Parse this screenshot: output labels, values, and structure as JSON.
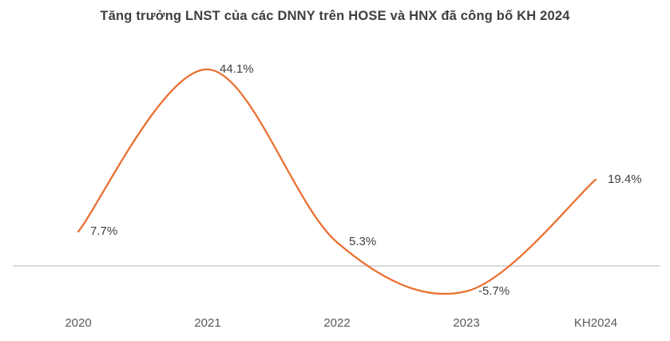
{
  "chart_data": {
    "type": "line",
    "smooth": true,
    "title": "Tăng trưởng LNST của các DNNY trên HOSE và HNX đã công bố KH 2024",
    "categories": [
      "2020",
      "2021",
      "2022",
      "2023",
      "KH2024"
    ],
    "values": [
      7.7,
      44.1,
      5.3,
      -5.7,
      19.4
    ],
    "labels": [
      "7.7%",
      "44.1%",
      "5.3%",
      "-5.7%",
      "19.4%"
    ],
    "unit": "%",
    "xlabel": "",
    "ylabel": "",
    "legend": "none",
    "grid": "off",
    "zero_line": true,
    "colors": {
      "line": "#E97132",
      "zero_axis": "#D9D9D9",
      "title_text": "#3f3f3f",
      "data_label_text": "#404040",
      "tick_text": "#595959",
      "background": "#ffffff"
    }
  }
}
